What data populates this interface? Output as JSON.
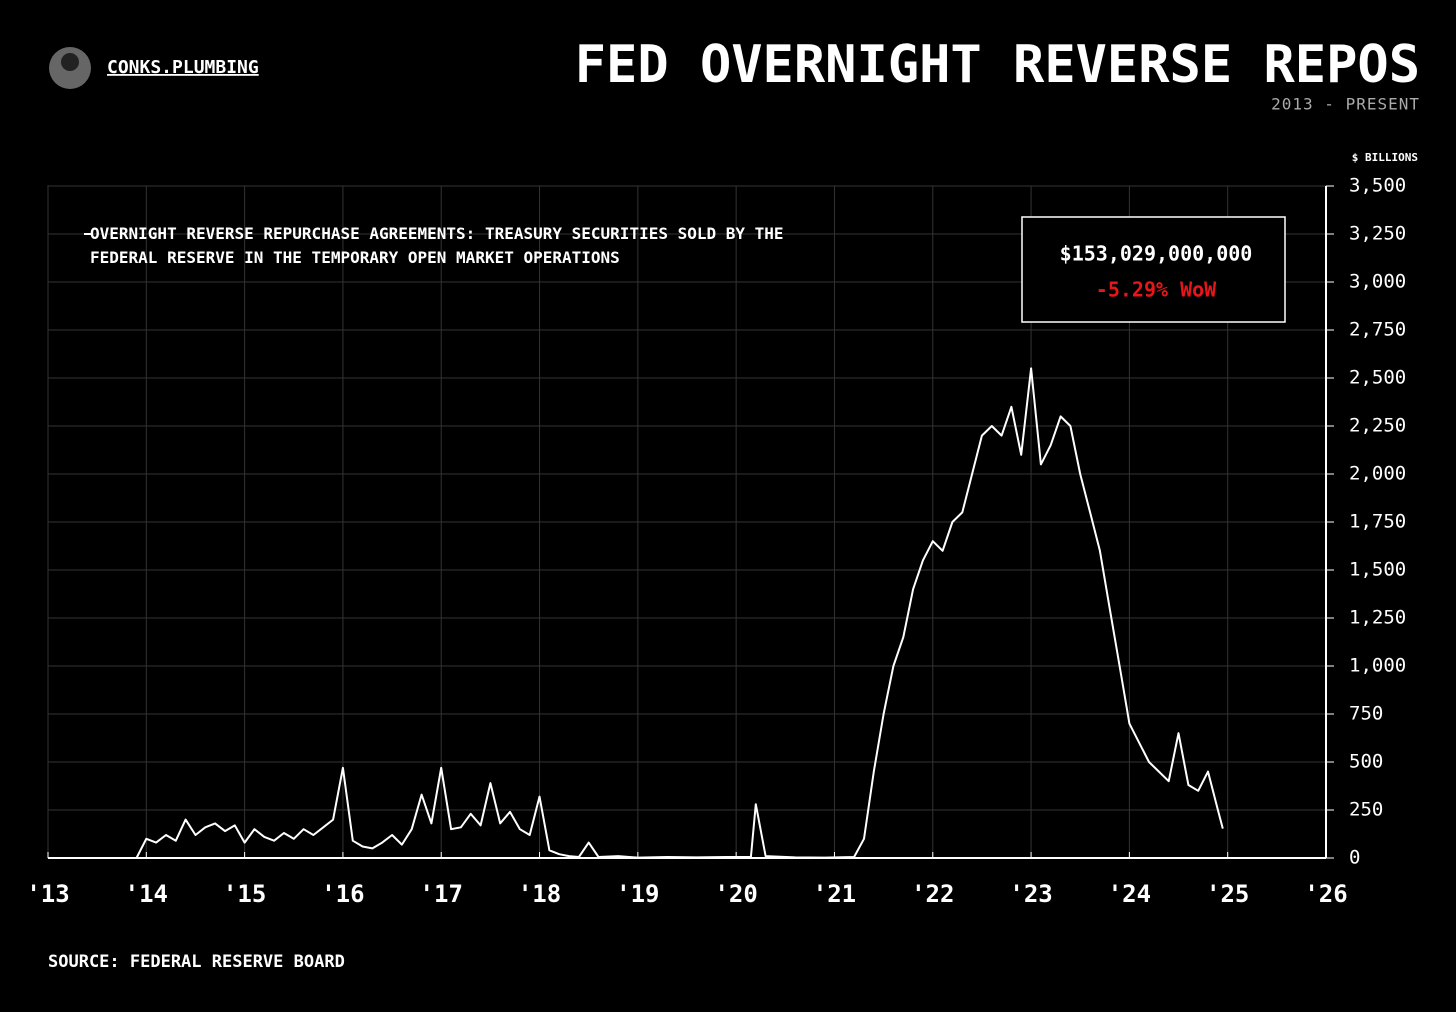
{
  "chart_data": {
    "type": "line",
    "title": "FED OVERNIGHT REVERSE REPOS",
    "subtitle": "2013 - PRESENT",
    "brand": "CONKS.PLUMBING",
    "y_axis_label": "$ BILLIONS",
    "source": "SOURCE: FEDERAL RESERVE BOARD",
    "callout": {
      "value": "$153,029,000,000",
      "change": "-5.29% WoW",
      "change_color": "#e8151b"
    },
    "grid": true,
    "xlim": [
      2013,
      2026
    ],
    "xticks": [
      {
        "value": 2013,
        "label": "'13"
      },
      {
        "value": 2014,
        "label": "'14"
      },
      {
        "value": 2015,
        "label": "'15"
      },
      {
        "value": 2016,
        "label": "'16"
      },
      {
        "value": 2017,
        "label": "'17"
      },
      {
        "value": 2018,
        "label": "'18"
      },
      {
        "value": 2019,
        "label": "'19"
      },
      {
        "value": 2020,
        "label": "'20"
      },
      {
        "value": 2021,
        "label": "'21"
      },
      {
        "value": 2022,
        "label": "'22"
      },
      {
        "value": 2023,
        "label": "'23"
      },
      {
        "value": 2024,
        "label": "'24"
      },
      {
        "value": 2025,
        "label": "'25"
      },
      {
        "value": 2026,
        "label": "'26"
      }
    ],
    "ylim": [
      0,
      3500
    ],
    "yticks": [
      0,
      250,
      500,
      750,
      {
        "value": 1000,
        "label": "1,000"
      },
      {
        "value": 1250,
        "label": "1,250"
      },
      {
        "value": 1500,
        "label": "1,500"
      },
      {
        "value": 1750,
        "label": "1,750"
      },
      {
        "value": 2000,
        "label": "2,000"
      },
      {
        "value": 2250,
        "label": "2,250"
      },
      {
        "value": 2500,
        "label": "2,500"
      },
      {
        "value": 2750,
        "label": "2,750"
      },
      {
        "value": 3000,
        "label": "3,000"
      },
      {
        "value": 3250,
        "label": "3,250"
      },
      {
        "value": 3500,
        "label": "3,500"
      }
    ],
    "x": [
      2013.9,
      2014.0,
      2014.1,
      2014.2,
      2014.3,
      2014.4,
      2014.5,
      2014.6,
      2014.7,
      2014.8,
      2014.9,
      2015.0,
      2015.1,
      2015.2,
      2015.3,
      2015.4,
      2015.5,
      2015.6,
      2015.7,
      2015.8,
      2015.9,
      2016.0,
      2016.1,
      2016.2,
      2016.3,
      2016.4,
      2016.5,
      2016.6,
      2016.7,
      2016.8,
      2016.9,
      2017.0,
      2017.1,
      2017.2,
      2017.3,
      2017.4,
      2017.5,
      2017.6,
      2017.7,
      2017.8,
      2017.9,
      2018.0,
      2018.1,
      2018.2,
      2018.3,
      2018.4,
      2018.5,
      2018.6,
      2018.8,
      2019.0,
      2019.3,
      2019.6,
      2019.9,
      2020.15,
      2020.2,
      2020.3,
      2020.6,
      2020.9,
      2021.2,
      2021.3,
      2021.4,
      2021.5,
      2021.6,
      2021.7,
      2021.8,
      2021.9,
      2022.0,
      2022.1,
      2022.2,
      2022.3,
      2022.4,
      2022.5,
      2022.6,
      2022.7,
      2022.8,
      2022.9,
      2023.0,
      2023.1,
      2023.2,
      2023.3,
      2023.4,
      2023.5,
      2023.6,
      2023.7,
      2023.8,
      2023.9,
      2024.0,
      2024.1,
      2024.2,
      2024.3,
      2024.4,
      2024.5,
      2024.6,
      2024.7,
      2024.8,
      2024.9,
      2024.95
    ],
    "series": [
      {
        "name": "OVERNIGHT REVERSE REPURCHASE AGREEMENTS: TREASURY SECURITIES SOLD BY THE FEDERAL RESERVE IN THE TEMPORARY OPEN MARKET OPERATIONS",
        "color": "#ffffff",
        "values": [
          0,
          100,
          80,
          120,
          90,
          200,
          120,
          160,
          180,
          140,
          170,
          80,
          150,
          110,
          90,
          130,
          100,
          150,
          120,
          160,
          200,
          470,
          90,
          60,
          50,
          80,
          120,
          70,
          150,
          330,
          180,
          470,
          150,
          160,
          230,
          170,
          390,
          180,
          240,
          150,
          120,
          320,
          40,
          20,
          10,
          5,
          80,
          5,
          10,
          2,
          5,
          3,
          5,
          5,
          280,
          10,
          3,
          2,
          5,
          100,
          450,
          750,
          1000,
          1150,
          1400,
          1550,
          1650,
          1600,
          1750,
          1800,
          2000,
          2200,
          2250,
          2200,
          2350,
          2100,
          2550,
          2050,
          2150,
          2300,
          2250,
          2000,
          1800,
          1600,
          1300,
          1000,
          700,
          600,
          500,
          450,
          400,
          650,
          380,
          350,
          450,
          250,
          153
        ]
      }
    ]
  }
}
